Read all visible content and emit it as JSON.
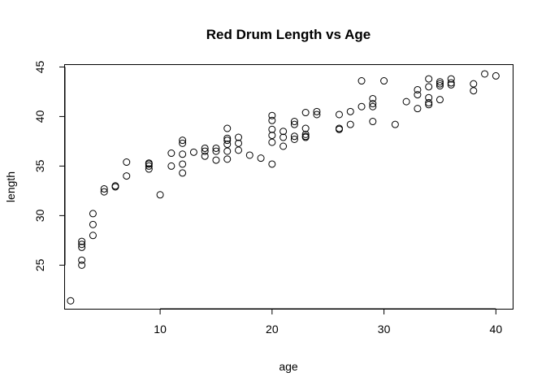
{
  "chart_data": {
    "type": "scatter",
    "title": "Red Drum Length vs Age",
    "xlabel": "age",
    "ylabel": "length",
    "xlim": [
      1.5,
      41.5
    ],
    "ylim": [
      20.6,
      45.2
    ],
    "xticks": [
      10,
      20,
      30,
      40
    ],
    "yticks": [
      25,
      30,
      35,
      40,
      45
    ],
    "grid": false,
    "legend": "none",
    "marker": "open-circle",
    "color": "#000000",
    "points": [
      [
        2,
        21.4
      ],
      [
        3,
        25.0
      ],
      [
        3,
        25.5
      ],
      [
        3,
        26.8
      ],
      [
        3,
        27.1
      ],
      [
        3,
        27.4
      ],
      [
        4,
        28.0
      ],
      [
        4,
        29.1
      ],
      [
        4,
        30.2
      ],
      [
        5,
        32.4
      ],
      [
        5,
        32.7
      ],
      [
        6,
        32.9
      ],
      [
        6,
        33.0
      ],
      [
        7,
        34.0
      ],
      [
        7,
        35.4
      ],
      [
        9,
        34.7
      ],
      [
        9,
        35.0
      ],
      [
        9,
        35.2
      ],
      [
        9,
        35.3
      ],
      [
        10,
        32.1
      ],
      [
        11,
        35.0
      ],
      [
        11,
        36.3
      ],
      [
        12,
        34.3
      ],
      [
        12,
        35.2
      ],
      [
        12,
        36.2
      ],
      [
        12,
        37.3
      ],
      [
        12,
        37.6
      ],
      [
        13,
        36.4
      ],
      [
        14,
        36.0
      ],
      [
        14,
        36.5
      ],
      [
        14,
        36.8
      ],
      [
        15,
        35.6
      ],
      [
        15,
        36.5
      ],
      [
        15,
        36.8
      ],
      [
        16,
        35.7
      ],
      [
        16,
        36.5
      ],
      [
        16,
        37.2
      ],
      [
        16,
        37.6
      ],
      [
        16,
        37.8
      ],
      [
        16,
        38.8
      ],
      [
        17,
        36.6
      ],
      [
        17,
        37.3
      ],
      [
        17,
        37.9
      ],
      [
        18,
        36.1
      ],
      [
        19,
        35.8
      ],
      [
        20,
        35.2
      ],
      [
        20,
        37.4
      ],
      [
        20,
        38.1
      ],
      [
        20,
        38.7
      ],
      [
        20,
        39.6
      ],
      [
        20,
        40.1
      ],
      [
        21,
        37.0
      ],
      [
        21,
        37.9
      ],
      [
        21,
        38.5
      ],
      [
        22,
        37.7
      ],
      [
        22,
        38.0
      ],
      [
        22,
        39.2
      ],
      [
        22,
        39.5
      ],
      [
        23,
        37.9
      ],
      [
        23,
        38.0
      ],
      [
        23,
        38.2
      ],
      [
        23,
        38.8
      ],
      [
        23,
        40.4
      ],
      [
        24,
        40.2
      ],
      [
        24,
        40.5
      ],
      [
        26,
        38.7
      ],
      [
        26,
        38.8
      ],
      [
        26,
        40.2
      ],
      [
        27,
        39.2
      ],
      [
        27,
        40.5
      ],
      [
        28,
        41.0
      ],
      [
        28,
        43.6
      ],
      [
        29,
        39.5
      ],
      [
        29,
        41.0
      ],
      [
        29,
        41.3
      ],
      [
        29,
        41.8
      ],
      [
        30,
        43.6
      ],
      [
        31,
        39.2
      ],
      [
        32,
        41.5
      ],
      [
        33,
        40.8
      ],
      [
        33,
        42.2
      ],
      [
        33,
        42.7
      ],
      [
        34,
        41.2
      ],
      [
        34,
        41.4
      ],
      [
        34,
        41.9
      ],
      [
        34,
        43.0
      ],
      [
        34,
        43.8
      ],
      [
        35,
        41.7
      ],
      [
        35,
        43.1
      ],
      [
        35,
        43.3
      ],
      [
        35,
        43.5
      ],
      [
        36,
        43.2
      ],
      [
        36,
        43.4
      ],
      [
        36,
        43.8
      ],
      [
        38,
        42.6
      ],
      [
        38,
        43.3
      ],
      [
        39,
        44.3
      ],
      [
        40,
        44.1
      ]
    ]
  }
}
